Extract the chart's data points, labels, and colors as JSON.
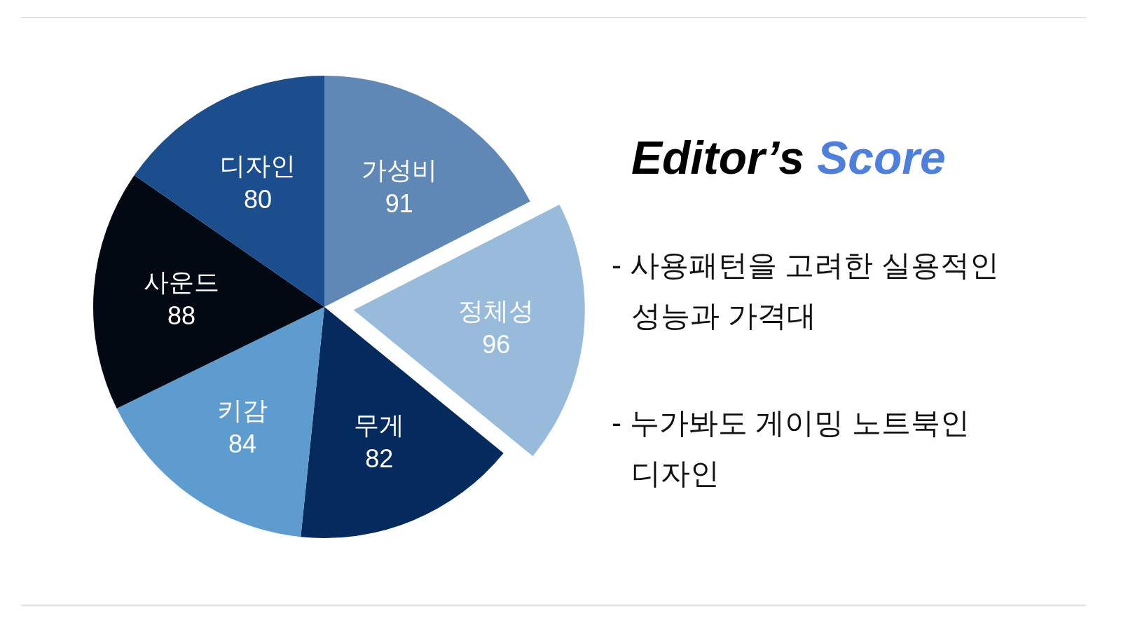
{
  "chart_data": {
    "type": "pie",
    "title": "Editor’s Score",
    "categories": [
      "가성비",
      "정체성",
      "무게",
      "키감",
      "사운드",
      "디자인"
    ],
    "values": [
      91,
      96,
      82,
      84,
      88,
      80
    ],
    "colors": [
      "#5f88b6",
      "#98bbdb",
      "#052b5e",
      "#5e9ccf",
      "#020912",
      "#1c4d8c"
    ],
    "data_labels": true,
    "annotations": [
      "- 사용패턴을 고려한 실용적인 성능과 가격대",
      "- 누가봐도 게이밍 노트북인 디자인"
    ]
  }
}
